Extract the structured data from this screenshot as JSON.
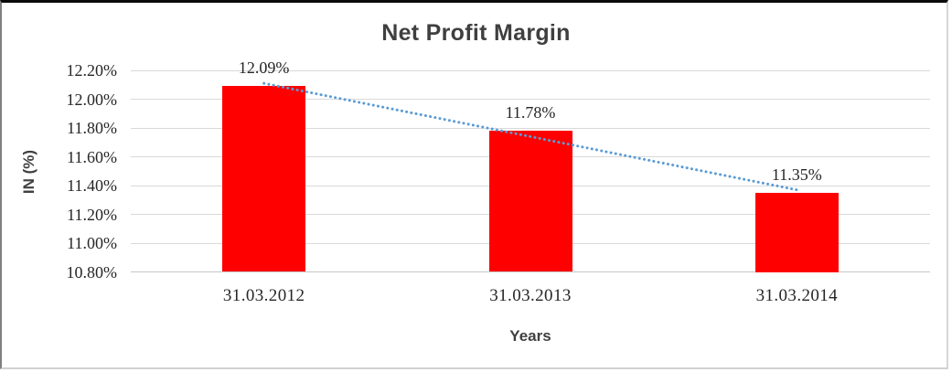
{
  "chart_data": {
    "type": "bar",
    "title": "Net Profit Margin",
    "xlabel": "Years",
    "ylabel": "IN (%)",
    "categories": [
      "31.03.2012",
      "31.03.2013",
      "31.03.2014"
    ],
    "values": [
      12.09,
      11.78,
      11.35
    ],
    "data_labels": [
      "12.09%",
      "11.78%",
      "11.35%"
    ],
    "ylim": [
      10.8,
      12.2
    ],
    "ytick_step": 0.2,
    "ytick_labels": [
      "12.20%",
      "12.00%",
      "11.80%",
      "11.60%",
      "11.40%",
      "11.20%",
      "11.00%",
      "10.80%"
    ],
    "grid": true,
    "legend": "none",
    "bar_color": "#ff0000",
    "gridline_color": "#d9d9d9",
    "trendline": {
      "type": "linear",
      "style": "dotted",
      "color": "#5b9bd5"
    }
  }
}
